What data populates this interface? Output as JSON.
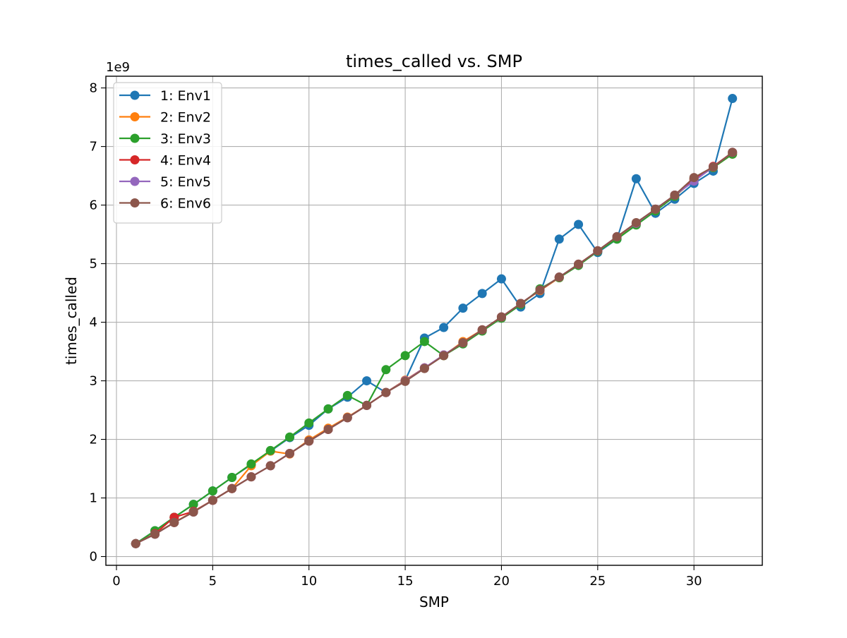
{
  "chart_data": {
    "type": "line",
    "title": "times_called vs. SMP",
    "xlabel": "SMP",
    "ylabel": "times_called",
    "y_offset_label": "1e9",
    "xlim": [
      -0.55,
      33.55
    ],
    "ylim": [
      -0.15,
      8.2
    ],
    "xticks": [
      0,
      5,
      10,
      15,
      20,
      25,
      30
    ],
    "yticks": [
      0,
      1,
      2,
      3,
      4,
      5,
      6,
      7,
      8
    ],
    "grid": true,
    "legend_position": "top-left",
    "x": [
      1,
      2,
      3,
      4,
      5,
      6,
      7,
      8,
      9,
      10,
      11,
      12,
      13,
      14,
      15,
      16,
      17,
      18,
      19,
      20,
      21,
      22,
      23,
      24,
      25,
      26,
      27,
      28,
      29,
      30,
      31,
      32
    ],
    "series": [
      {
        "name": "1: Env1",
        "color": "#1f77b4",
        "values": [
          0.22,
          0.44,
          0.67,
          0.89,
          1.12,
          1.35,
          1.57,
          1.8,
          2.03,
          2.24,
          2.52,
          2.72,
          3.0,
          2.8,
          3.01,
          3.73,
          3.91,
          4.24,
          4.49,
          4.74,
          4.26,
          4.49,
          5.42,
          5.67,
          5.19,
          5.42,
          6.45,
          5.86,
          6.1,
          6.37,
          6.58,
          7.82
        ]
      },
      {
        "name": "2: Env2",
        "color": "#ff7f0e",
        "values": [
          0.22,
          0.39,
          0.58,
          0.77,
          0.96,
          1.16,
          1.55,
          1.8,
          1.75,
          1.99,
          2.19,
          2.38,
          2.58,
          2.8,
          3.01,
          3.22,
          3.43,
          3.67,
          3.87,
          4.09,
          4.32,
          4.54,
          4.76,
          4.99,
          5.22,
          5.45,
          5.68,
          5.91,
          6.15,
          6.43,
          6.64,
          6.87
        ]
      },
      {
        "name": "3: Env3",
        "color": "#2ca02c",
        "values": [
          0.22,
          0.44,
          0.67,
          0.89,
          1.12,
          1.35,
          1.58,
          1.81,
          2.04,
          2.28,
          2.52,
          2.75,
          2.58,
          3.19,
          3.43,
          3.67,
          3.43,
          3.63,
          3.85,
          4.07,
          4.3,
          4.57,
          4.76,
          4.97,
          5.21,
          5.42,
          5.66,
          5.9,
          6.15,
          6.45,
          6.64,
          6.87
        ]
      },
      {
        "name": "4: Env4",
        "color": "#d62728",
        "values": [
          0.22,
          0.39,
          0.67,
          0.77,
          0.96,
          1.16,
          1.36,
          1.55,
          1.76,
          1.97,
          2.17,
          2.37,
          2.58,
          2.8,
          3.0,
          3.22,
          3.44,
          3.65,
          3.87,
          4.09,
          4.32,
          4.55,
          4.77,
          4.99,
          5.22,
          5.46,
          5.69,
          5.93,
          6.17,
          6.44,
          6.66,
          6.9
        ]
      },
      {
        "name": "5: Env5",
        "color": "#9467bd",
        "values": [
          0.22,
          0.38,
          0.58,
          0.76,
          0.96,
          1.16,
          1.36,
          1.55,
          1.76,
          1.97,
          2.17,
          2.37,
          2.58,
          2.8,
          3.0,
          3.22,
          3.44,
          3.65,
          3.87,
          4.09,
          4.32,
          4.55,
          4.77,
          4.99,
          5.22,
          5.46,
          5.69,
          5.93,
          6.17,
          6.41,
          6.65,
          6.9
        ]
      },
      {
        "name": "6: Env6",
        "color": "#8c564b",
        "values": [
          0.22,
          0.38,
          0.58,
          0.76,
          0.96,
          1.16,
          1.36,
          1.55,
          1.76,
          1.97,
          2.17,
          2.37,
          2.58,
          2.8,
          2.99,
          3.21,
          3.43,
          3.65,
          3.87,
          4.09,
          4.32,
          4.55,
          4.77,
          4.99,
          5.22,
          5.46,
          5.7,
          5.93,
          6.17,
          6.47,
          6.65,
          6.9
        ]
      }
    ]
  }
}
